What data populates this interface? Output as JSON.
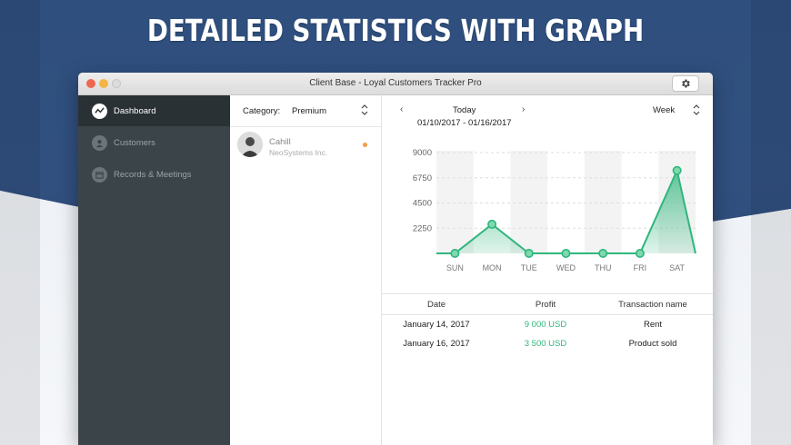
{
  "banner": {
    "headline": "DETAILED STATISTICS WITH GRAPH"
  },
  "window": {
    "title": "Client Base - Loyal Customers Tracker Pro"
  },
  "sidebar": {
    "items": [
      {
        "label": "Dashboard",
        "icon": "dashboard-icon",
        "active": true
      },
      {
        "label": "Customers",
        "icon": "customers-icon",
        "active": false
      },
      {
        "label": "Records & Meetings",
        "icon": "calendar-icon",
        "active": false
      }
    ]
  },
  "list": {
    "category_label": "Category:",
    "category_value": "Premium",
    "contacts": [
      {
        "name": "Cahill",
        "company": "NeoSystems Inc."
      }
    ]
  },
  "nav": {
    "prev": "‹",
    "label": "Today",
    "next": "›",
    "range": "01/10/2017 - 01/16/2017",
    "period": "Week"
  },
  "chart_data": {
    "type": "area",
    "categories": [
      "SUN",
      "MON",
      "TUE",
      "WED",
      "THU",
      "FRI",
      "SAT"
    ],
    "values": [
      0,
      2600,
      0,
      0,
      0,
      0,
      7400
    ],
    "yticks": [
      2250,
      4500,
      6750,
      9000
    ],
    "ylim": [
      0,
      9000
    ],
    "color": "#2fb67d"
  },
  "table": {
    "headers": [
      "Date",
      "Profit",
      "Transaction name"
    ],
    "rows": [
      {
        "date": "January 14, 2017",
        "profit": "9 000 USD",
        "name": "Rent"
      },
      {
        "date": "January 16, 2017",
        "profit": "3 500 USD",
        "name": "Product sold"
      }
    ]
  }
}
